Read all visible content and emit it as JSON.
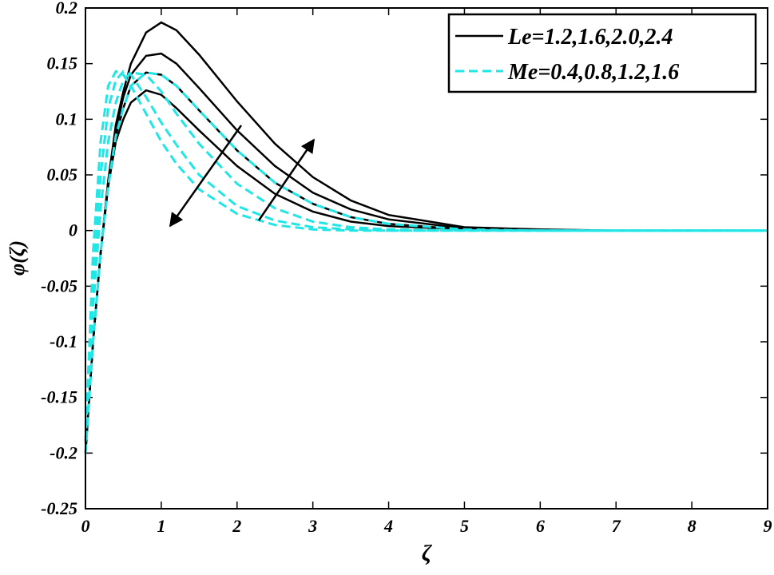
{
  "chart_data": {
    "type": "line",
    "x_label": "ζ",
    "y_label": "φ(ζ)",
    "x": [
      0,
      0.1,
      0.2,
      0.3,
      0.4,
      0.5,
      0.6,
      0.8,
      1.0,
      1.2,
      1.5,
      2,
      2.5,
      3,
      3.5,
      4,
      5,
      6,
      7,
      8,
      9
    ],
    "series": [
      {
        "name": "Le=1.2,1.6,2.0,2.4",
        "color": "#000000",
        "dashed": false,
        "values": [
          [
            -0.2,
            -0.1,
            -0.02,
            0.04,
            0.08,
            0.1,
            0.115,
            0.126,
            0.122,
            0.11,
            0.09,
            0.058,
            0.033,
            0.017,
            0.008,
            0.004,
            0.001,
            0,
            0,
            0,
            0
          ],
          [
            -0.2,
            -0.1,
            -0.02,
            0.04,
            0.085,
            0.11,
            0.13,
            0.142,
            0.14,
            0.13,
            0.108,
            0.072,
            0.043,
            0.024,
            0.012,
            0.006,
            0.001,
            0,
            0,
            0,
            0
          ],
          [
            -0.2,
            -0.1,
            -0.02,
            0.045,
            0.09,
            0.12,
            0.14,
            0.157,
            0.159,
            0.15,
            0.128,
            0.09,
            0.058,
            0.034,
            0.019,
            0.01,
            0.002,
            0,
            0,
            0,
            0
          ],
          [
            -0.2,
            -0.1,
            -0.02,
            0.045,
            0.095,
            0.125,
            0.15,
            0.178,
            0.187,
            0.18,
            0.158,
            0.116,
            0.078,
            0.048,
            0.027,
            0.014,
            0.003,
            0.001,
            0,
            0,
            0
          ]
        ]
      },
      {
        "name": "Me=0.4,0.8,1.2,1.6",
        "color": "#22e5e5",
        "dashed": true,
        "values": [
          [
            -0.19,
            -0.02,
            0.08,
            0.13,
            0.143,
            0.14,
            0.13,
            0.105,
            0.08,
            0.06,
            0.037,
            0.015,
            0.005,
            0.001,
            0,
            0,
            0,
            0,
            0,
            0,
            0
          ],
          [
            -0.19,
            -0.05,
            0.05,
            0.11,
            0.135,
            0.143,
            0.14,
            0.12,
            0.097,
            0.077,
            0.05,
            0.022,
            0.009,
            0.003,
            0.001,
            0,
            0,
            0,
            0,
            0,
            0
          ],
          [
            -0.19,
            -0.07,
            0.02,
            0.08,
            0.115,
            0.135,
            0.142,
            0.14,
            0.125,
            0.105,
            0.078,
            0.042,
            0.02,
            0.008,
            0.003,
            0.001,
            0,
            0,
            0,
            0,
            0
          ],
          [
            -0.2,
            -0.1,
            -0.02,
            0.04,
            0.085,
            0.11,
            0.13,
            0.142,
            0.14,
            0.13,
            0.108,
            0.072,
            0.043,
            0.024,
            0.012,
            0.006,
            0.001,
            0,
            0,
            0,
            0
          ]
        ]
      }
    ],
    "xlim": [
      0,
      9
    ],
    "xticks": [
      0,
      1,
      2,
      3,
      4,
      5,
      6,
      7,
      8,
      9
    ],
    "ylim": [
      -0.25,
      0.2
    ],
    "yticks": [
      -0.25,
      -0.2,
      -0.15,
      -0.1,
      -0.05,
      0,
      0.05,
      0.1,
      0.15,
      0.2
    ],
    "legend": "upper right"
  }
}
